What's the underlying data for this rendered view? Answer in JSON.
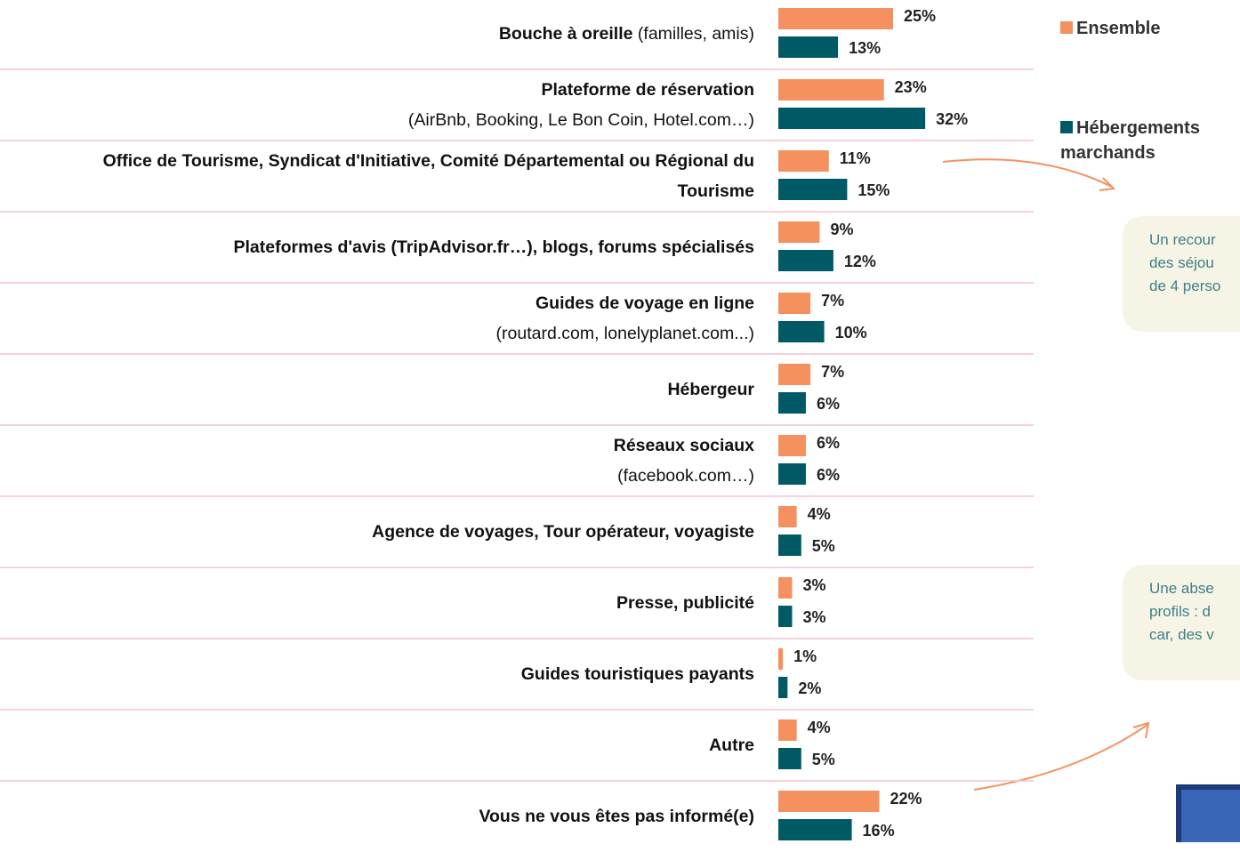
{
  "chart_data": {
    "type": "bar",
    "orientation": "horizontal",
    "categories": [
      "Bouche à oreille",
      "Plateforme de réservation",
      "Office de Tourisme, Syndicat d'Initiative, Comité Départemental ou Régional du Tourisme",
      "Plateformes d'avis (TripAdvisor.fr…), blogs, forums spécialisés",
      "Guides de voyage en ligne",
      "Hébergeur",
      "Réseaux sociaux",
      "Agence de voyages, Tour opérateur, voyagiste",
      "Presse, publicité",
      "Guides touristiques payants",
      "Autre",
      "Vous ne vous êtes pas informé(e)"
    ],
    "notes": [
      "(familles, amis)",
      "(AirBnb, Booking, Le Bon Coin, Hotel.com…)",
      null,
      null,
      "(routard.com, lonelyplanet.com...)",
      null,
      "(facebook.com…)",
      null,
      null,
      null,
      null,
      null
    ],
    "note_inline": [
      true,
      false,
      false,
      false,
      false,
      false,
      false,
      false,
      false,
      false,
      false,
      false
    ],
    "series": [
      {
        "name": "Ensemble",
        "color": "#f4915e",
        "values": [
          25,
          23,
          11,
          9,
          7,
          7,
          6,
          4,
          3,
          1,
          4,
          22
        ],
        "value_labels": [
          "25%",
          "23%",
          "11%",
          "9%",
          "7%",
          "7%",
          "6%",
          "4%",
          "3%",
          "1%",
          "4%",
          "22%"
        ]
      },
      {
        "name": "Hébergements marchands",
        "color": "#005a66",
        "values": [
          13,
          32,
          15,
          12,
          10,
          6,
          6,
          5,
          3,
          2,
          5,
          16
        ],
        "value_labels": [
          "13%",
          "32%",
          "15%",
          "12%",
          "10%",
          "6%",
          "6%",
          "5%",
          "3%",
          "2%",
          "5%",
          "16%"
        ]
      }
    ],
    "legend": "top-right",
    "annotations": [
      {
        "lines": [
          "Un recour",
          "des séjou",
          "de 4 perso"
        ]
      },
      {
        "lines": [
          "Une abse",
          "profils : d",
          "car, des v"
        ]
      }
    ]
  }
}
